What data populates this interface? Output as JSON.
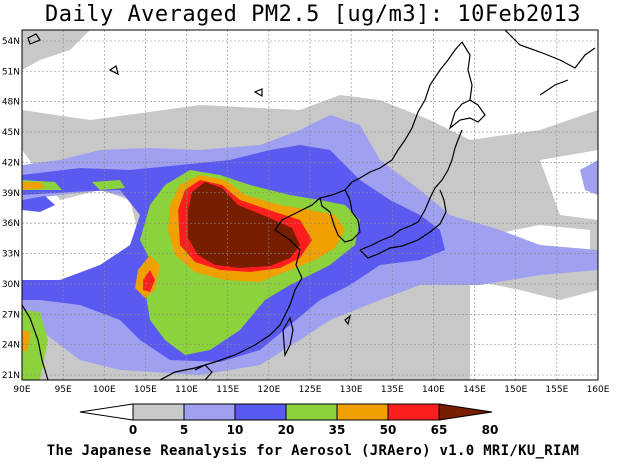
{
  "title": "Daily Averaged PM2.5 [ug/m3]: 10Feb2013",
  "footer": "The Japanese Reanalysis for Aerosol (JRAero) v1.0 MRI/KU_RIAM",
  "map": {
    "lon_labels": [
      "90E",
      "95E",
      "100E",
      "105E",
      "110E",
      "115E",
      "120E",
      "125E",
      "130E",
      "135E",
      "140E",
      "145E",
      "150E",
      "155E",
      "160E"
    ],
    "lat_labels": [
      "54N",
      "51N",
      "48N",
      "45N",
      "42N",
      "39N",
      "36N",
      "33N",
      "30N",
      "27N",
      "24N",
      "21N"
    ]
  },
  "colorbar": {
    "levels": [
      "0",
      "5",
      "10",
      "20",
      "35",
      "50",
      "65",
      "80"
    ],
    "colors": [
      "#ffffff",
      "#c8c8c8",
      "#a0a0f0",
      "#5a5af0",
      "#8cd23c",
      "#f0a000",
      "#ff1e1e",
      "#781e00"
    ]
  },
  "colors": {
    "coast": "#000000",
    "grid": "#888888",
    "land": "#ffffff"
  }
}
